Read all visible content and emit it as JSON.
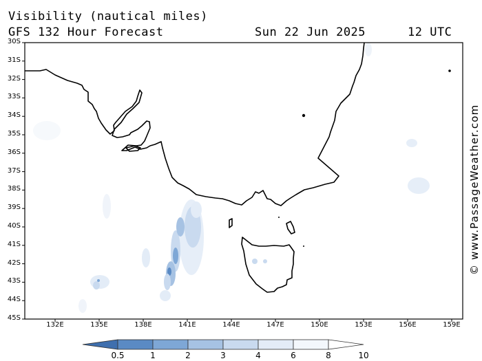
{
  "header": {
    "title_line1": "Visibility (nautical miles)",
    "title_line2": "GFS 132 Hour Forecast",
    "date": "Sun 22 Jun 2025",
    "time": "12 UTC"
  },
  "credit": "© www.PassageWeather.com",
  "map": {
    "lat_labels": [
      "30S",
      "31S",
      "32S",
      "33S",
      "34S",
      "35S",
      "36S",
      "37S",
      "38S",
      "39S",
      "40S",
      "41S",
      "42S",
      "43S",
      "44S",
      "45S"
    ],
    "lon_labels": [
      "132E",
      "135E",
      "138E",
      "141E",
      "144E",
      "147E",
      "150E",
      "153E",
      "156E",
      "159E"
    ],
    "region": "South-east Australia, Tasmania and Bass Strait"
  },
  "legend": {
    "labels": [
      "0.5",
      "1",
      "2",
      "3",
      "4",
      "6",
      "8",
      "10"
    ],
    "colors": [
      "#3f6fae",
      "#5a8ac4",
      "#7ea7d6",
      "#a6c2e3",
      "#c9daef",
      "#e3ecf7",
      "#f3f7fc",
      "#ffffff"
    ]
  }
}
